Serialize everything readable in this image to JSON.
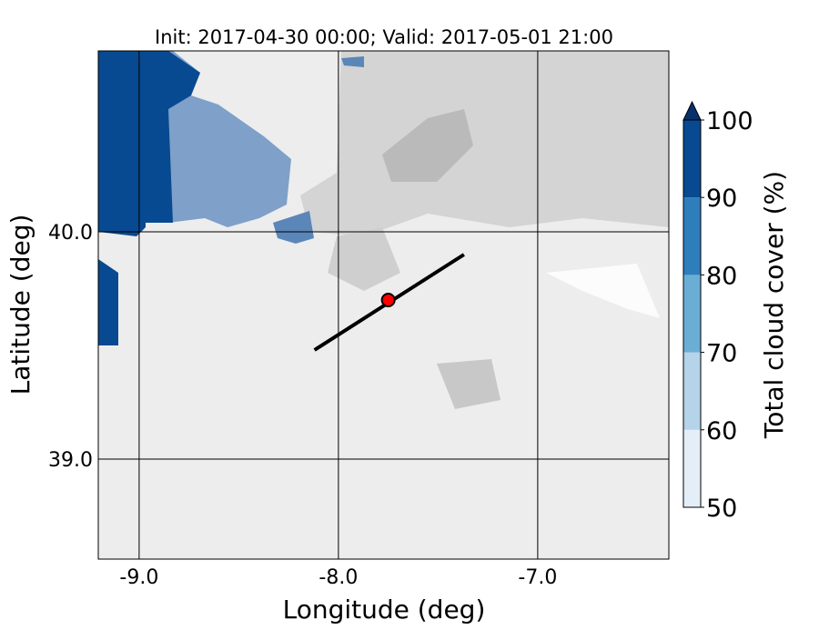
{
  "title": "Init: 2017-04-30 00:00; Valid: 2017-05-01 21:00",
  "map": {
    "x_label": "Longitude (deg)",
    "y_label": "Latitude (deg)",
    "xlim": [
      -9.205,
      -6.342
    ],
    "ylim": [
      38.56,
      40.796
    ],
    "xticks": [
      {
        "value": -9,
        "label": "-9.0"
      },
      {
        "value": -8,
        "label": "-8.0"
      },
      {
        "value": -7,
        "label": "-7.0"
      }
    ],
    "yticks": [
      {
        "value": 39,
        "label": "39.0"
      },
      {
        "value": 40,
        "label": "40.0"
      }
    ],
    "transect": {
      "lon": [
        -8.12,
        -7.37
      ],
      "lat": [
        39.48,
        39.9
      ],
      "color": "#000000"
    },
    "point": {
      "lon": -7.75,
      "lat": 39.7,
      "color": "#ff0000"
    }
  },
  "colorbar": {
    "label": "Total cloud cover (%)",
    "ticks": [
      50,
      60,
      70,
      80,
      90,
      100
    ],
    "colors": [
      "#e3eef8",
      "#b5d3e9",
      "#6aaed6",
      "#2e7ebc",
      "#084a91"
    ],
    "extend_color": "#08306b"
  }
}
